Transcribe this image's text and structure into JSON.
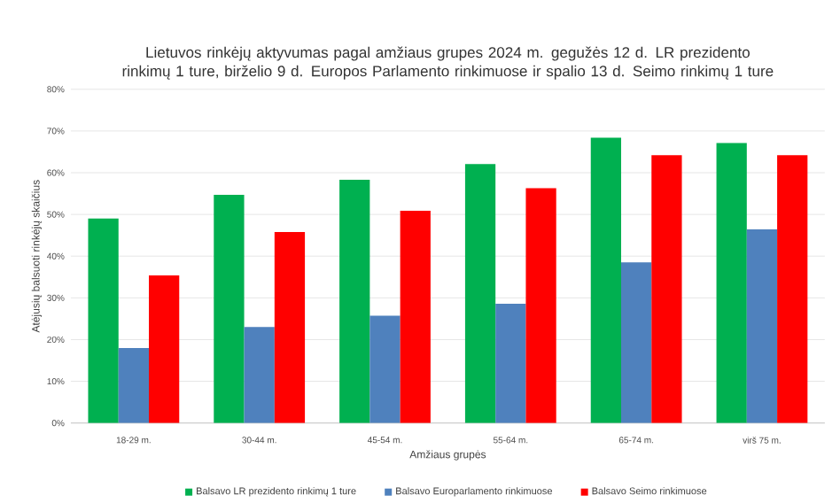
{
  "chart_data": {
    "type": "bar",
    "title": "Lietuvos rinkėjų aktyvumas pagal amžiaus grupes 2024 m. gegužės 12 d. LR prezidento rinkimų 1 ture, birželio 9 d. Europos Parlamento rinkimuose ir spalio 13 d. Seimo rinkimų 1 ture",
    "xlabel": "Amžiaus grupės",
    "ylabel": "Atėjusių balsuoti rinkėjų skaičius",
    "categories": [
      "18-29 m.",
      "30-44 m.",
      "45-54 m.",
      "55-64 m.",
      "65-74 m.",
      "virš 75 m."
    ],
    "series": [
      {
        "name": "Balsavo LR prezidento rinkimų 1 ture",
        "color": "#00b050",
        "values": [
          49,
          54.7,
          58.3,
          62.1,
          68.4,
          67.1
        ]
      },
      {
        "name": "Balsavo Europarlamento rinkimuose",
        "color": "#4f81bd",
        "values": [
          18,
          23,
          25.7,
          28.6,
          38.5,
          46.4
        ]
      },
      {
        "name": "Balsavo Seimo rinkimuose",
        "color": "#ff0000",
        "values": [
          35.4,
          45.8,
          50.9,
          56.3,
          64.2,
          64.2
        ]
      }
    ],
    "ylim": [
      0,
      80
    ],
    "yticks": [
      {
        "value": 0,
        "label": "0%"
      },
      {
        "value": 10,
        "label": "10%"
      },
      {
        "value": 20,
        "label": "20%"
      },
      {
        "value": 30,
        "label": "30%"
      },
      {
        "value": 40,
        "label": "40%"
      },
      {
        "value": 50,
        "label": "50%"
      },
      {
        "value": 60,
        "label": "60%"
      },
      {
        "value": 70,
        "label": "70%"
      },
      {
        "value": 80,
        "label": "80%"
      }
    ],
    "grid": "y",
    "legend": "bottom"
  }
}
